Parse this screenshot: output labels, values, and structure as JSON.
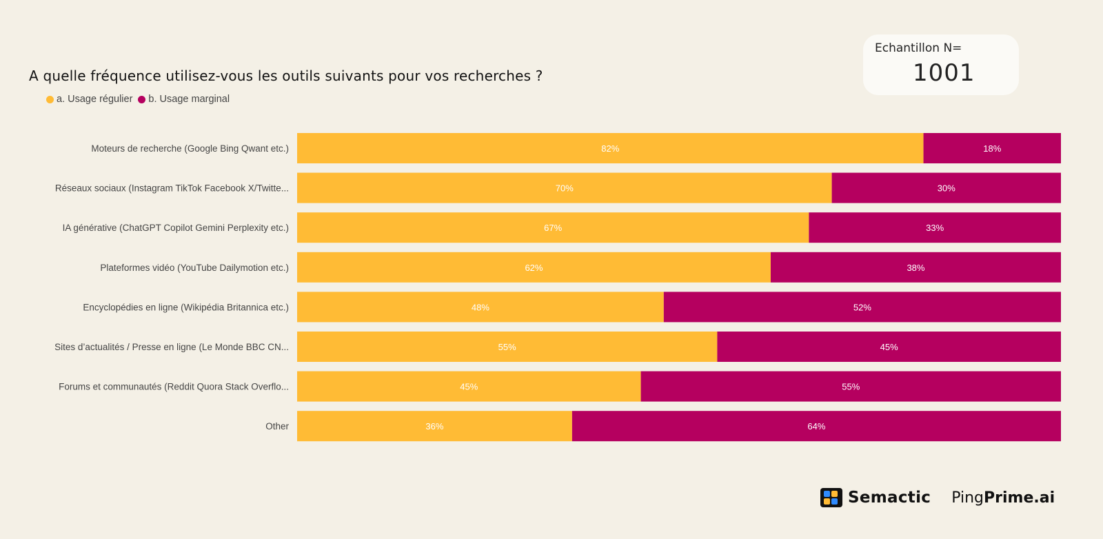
{
  "title": "A quelle fréquence utilisez-vous les outils suivants pour vos recherches ?",
  "sample": {
    "label": "Echantillon N=",
    "value": "1001"
  },
  "brand": {
    "semactic": "Semactic",
    "ping_light": "Ping",
    "ping_bold": "Prime.ai"
  },
  "colors": {
    "regular": "#ffbb35",
    "marginal": "#b5005f",
    "background": "#f4f0e6"
  },
  "chart_data": {
    "type": "bar",
    "orientation": "horizontal",
    "stacked": "100%",
    "title": "A quelle fréquence utilisez-vous les outils suivants pour vos recherches ?",
    "legend_position": "top-left",
    "categories": [
      "Moteurs de recherche (Google Bing Qwant etc.)",
      "Réseaux sociaux (Instagram TikTok Facebook X/Twitte...",
      "IA générative (ChatGPT Copilot Gemini Perplexity etc.)",
      "Plateformes vidéo (YouTube Dailymotion etc.)",
      "Encyclopédies en ligne (Wikipédia Britannica etc.)",
      "Sites d’actualités / Presse en ligne (Le Monde BBC CN...",
      "Forums et communautés (Reddit Quora Stack Overflo...",
      "Other"
    ],
    "series": [
      {
        "name": "a. Usage régulier",
        "color": "#ffbb35",
        "values": [
          82,
          70,
          67,
          62,
          48,
          55,
          45,
          36
        ]
      },
      {
        "name": "b. Usage marginal",
        "color": "#b5005f",
        "values": [
          18,
          30,
          33,
          38,
          52,
          45,
          55,
          64
        ]
      }
    ],
    "value_suffix": "%",
    "xlim": [
      0,
      100
    ]
  }
}
